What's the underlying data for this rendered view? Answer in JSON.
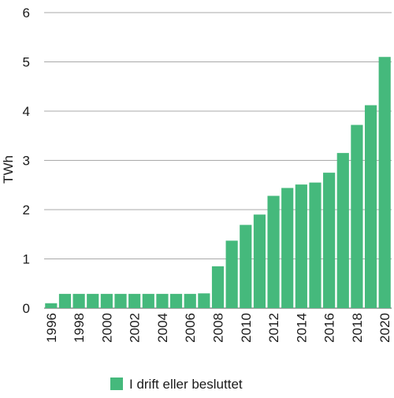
{
  "chart_data": {
    "type": "bar",
    "categories": [
      "1996",
      "1997",
      "1998",
      "1999",
      "2000",
      "2001",
      "2002",
      "2003",
      "2004",
      "2005",
      "2006",
      "2007",
      "2008",
      "2009",
      "2010",
      "2011",
      "2012",
      "2013",
      "2014",
      "2015",
      "2016",
      "2017",
      "2018",
      "2019",
      "2020"
    ],
    "tick_labels": [
      "1996",
      "1998",
      "2000",
      "2002",
      "2004",
      "2006",
      "2008",
      "2010",
      "2012",
      "2014",
      "2016",
      "2018",
      "2020"
    ],
    "series": [
      {
        "name": "I drift eller besluttet",
        "color": "#45b97c",
        "values": [
          0.1,
          0.29,
          0.29,
          0.29,
          0.29,
          0.29,
          0.29,
          0.29,
          0.29,
          0.29,
          0.29,
          0.3,
          0.85,
          1.37,
          1.69,
          1.9,
          2.28,
          2.44,
          2.51,
          2.55,
          2.75,
          3.15,
          3.72,
          4.12,
          5.1
        ]
      }
    ],
    "ylabel": "TWh",
    "xlabel": "",
    "ylim": [
      0,
      6
    ],
    "yticks": [
      0,
      1,
      2,
      3,
      4,
      5,
      6
    ],
    "grid": true,
    "legend": "bottom"
  }
}
